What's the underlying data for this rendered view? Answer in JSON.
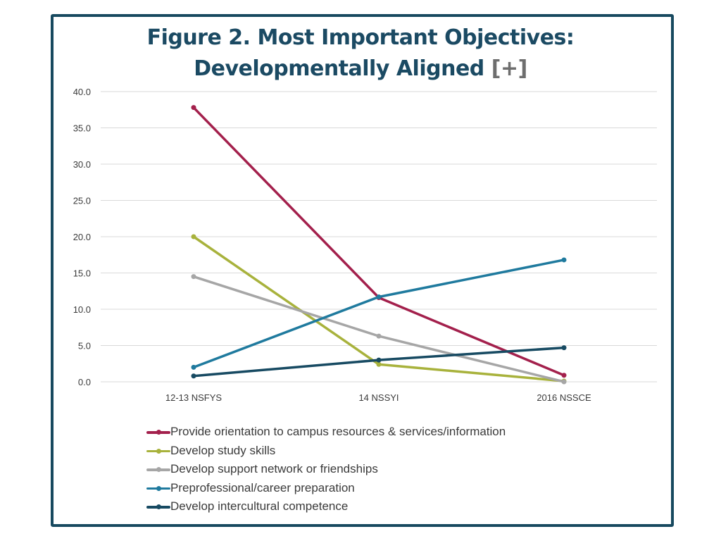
{
  "title": {
    "line1": "Figure 2. Most Important Objectives:",
    "line2": "Developmentally Aligned",
    "plus": "[+]"
  },
  "chart_data": {
    "type": "line",
    "categories": [
      "12-13 NSFYS",
      "14 NSSYI",
      "2016 NSSCE"
    ],
    "ylim": [
      0,
      40
    ],
    "yticks": [
      "0.0",
      "5.0",
      "10.0",
      "15.0",
      "20.0",
      "25.0",
      "30.0",
      "35.0",
      "40.0"
    ],
    "grid": true,
    "legend_position": "bottom",
    "series": [
      {
        "name": "Provide orientation to campus resources & services/information",
        "color": "#a3204c",
        "values": [
          37.8,
          11.6,
          0.9
        ]
      },
      {
        "name": "Develop study skills",
        "color": "#a8b23c",
        "values": [
          20.0,
          2.4,
          0.1
        ]
      },
      {
        "name": "Develop support network or friendships",
        "color": "#a6a6a6",
        "values": [
          14.5,
          6.3,
          0.0
        ]
      },
      {
        "name": "Preprofessional/career preparation",
        "color": "#1f7a9e",
        "values": [
          2.0,
          11.7,
          16.8
        ]
      },
      {
        "name": "Develop intercultural competence",
        "color": "#174a62",
        "values": [
          0.8,
          3.0,
          4.7
        ]
      }
    ]
  }
}
